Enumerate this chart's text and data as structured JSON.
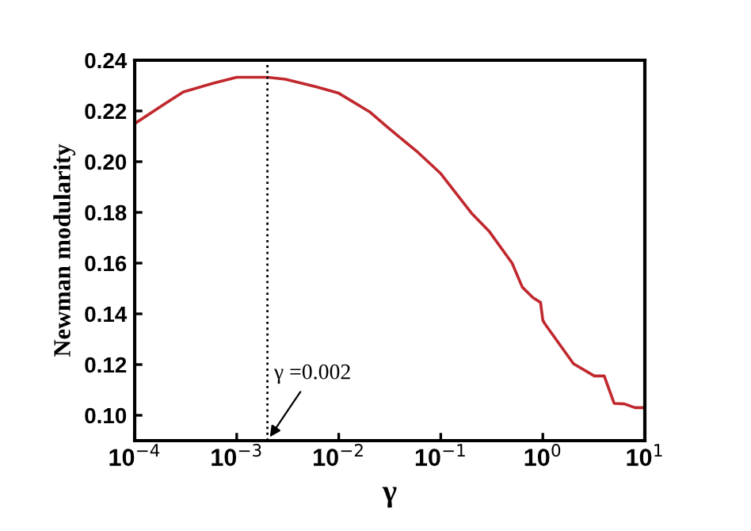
{
  "chart_data": {
    "type": "line",
    "xlabel": "γ",
    "ylabel": "Newman modularity",
    "log": "x",
    "x": [
      0.0001,
      0.0002,
      0.0003,
      0.0006,
      0.001,
      0.002,
      0.003,
      0.006,
      0.01,
      0.02,
      0.03,
      0.06,
      0.1,
      0.2,
      0.3,
      0.5,
      0.63,
      0.8,
      0.95,
      1.0,
      1.05,
      2,
      3.2,
      4,
      5,
      6.3,
      8,
      10
    ],
    "series": [
      {
        "color": "#c0282d",
        "values": [
          0.215,
          0.223,
          0.2275,
          0.231,
          0.2333,
          0.2333,
          0.2325,
          0.2295,
          0.227,
          0.2197,
          0.2136,
          0.2036,
          0.1953,
          0.1797,
          0.1724,
          0.16,
          0.1505,
          0.1464,
          0.1445,
          0.1375,
          0.136,
          0.1203,
          0.1155,
          0.1155,
          0.1047,
          0.1045,
          0.103,
          0.103
        ]
      }
    ],
    "xlim": [
      0.0001,
      10
    ],
    "xticks": [
      {
        "value": 0.0001,
        "label": "10$^{−4}$"
      },
      {
        "value": 0.001,
        "label": "10$^{−3}$"
      },
      {
        "value": 0.01,
        "label": "10$^{−2}$"
      },
      {
        "value": 0.1,
        "label": "10$^{−1}$"
      },
      {
        "value": 1,
        "label": "10$^{0}$"
      },
      {
        "value": 10,
        "label": "10$^{1}$"
      }
    ],
    "ylim": [
      0.09,
      0.24
    ],
    "yticks": [
      {
        "value": 0.1,
        "label": "0.10"
      },
      {
        "value": 0.12,
        "label": "0.12"
      },
      {
        "value": 0.14,
        "label": "0.14"
      },
      {
        "value": 0.16,
        "label": "0.16"
      },
      {
        "value": 0.18,
        "label": "0.18"
      },
      {
        "value": 0.2,
        "label": "0.20"
      },
      {
        "value": 0.22,
        "label": "0.22"
      },
      {
        "value": 0.24,
        "label": "0.24"
      }
    ],
    "ref_lines": [
      {
        "axis": "x",
        "value": 0.002,
        "line_style": "dotted",
        "color": "#000000"
      }
    ],
    "annotations": [
      {
        "text": "γ =0.002",
        "x": 0.002,
        "y": 0.09
      }
    ],
    "grid": false,
    "legend": false,
    "marker": "none",
    "line_style": "solid"
  }
}
